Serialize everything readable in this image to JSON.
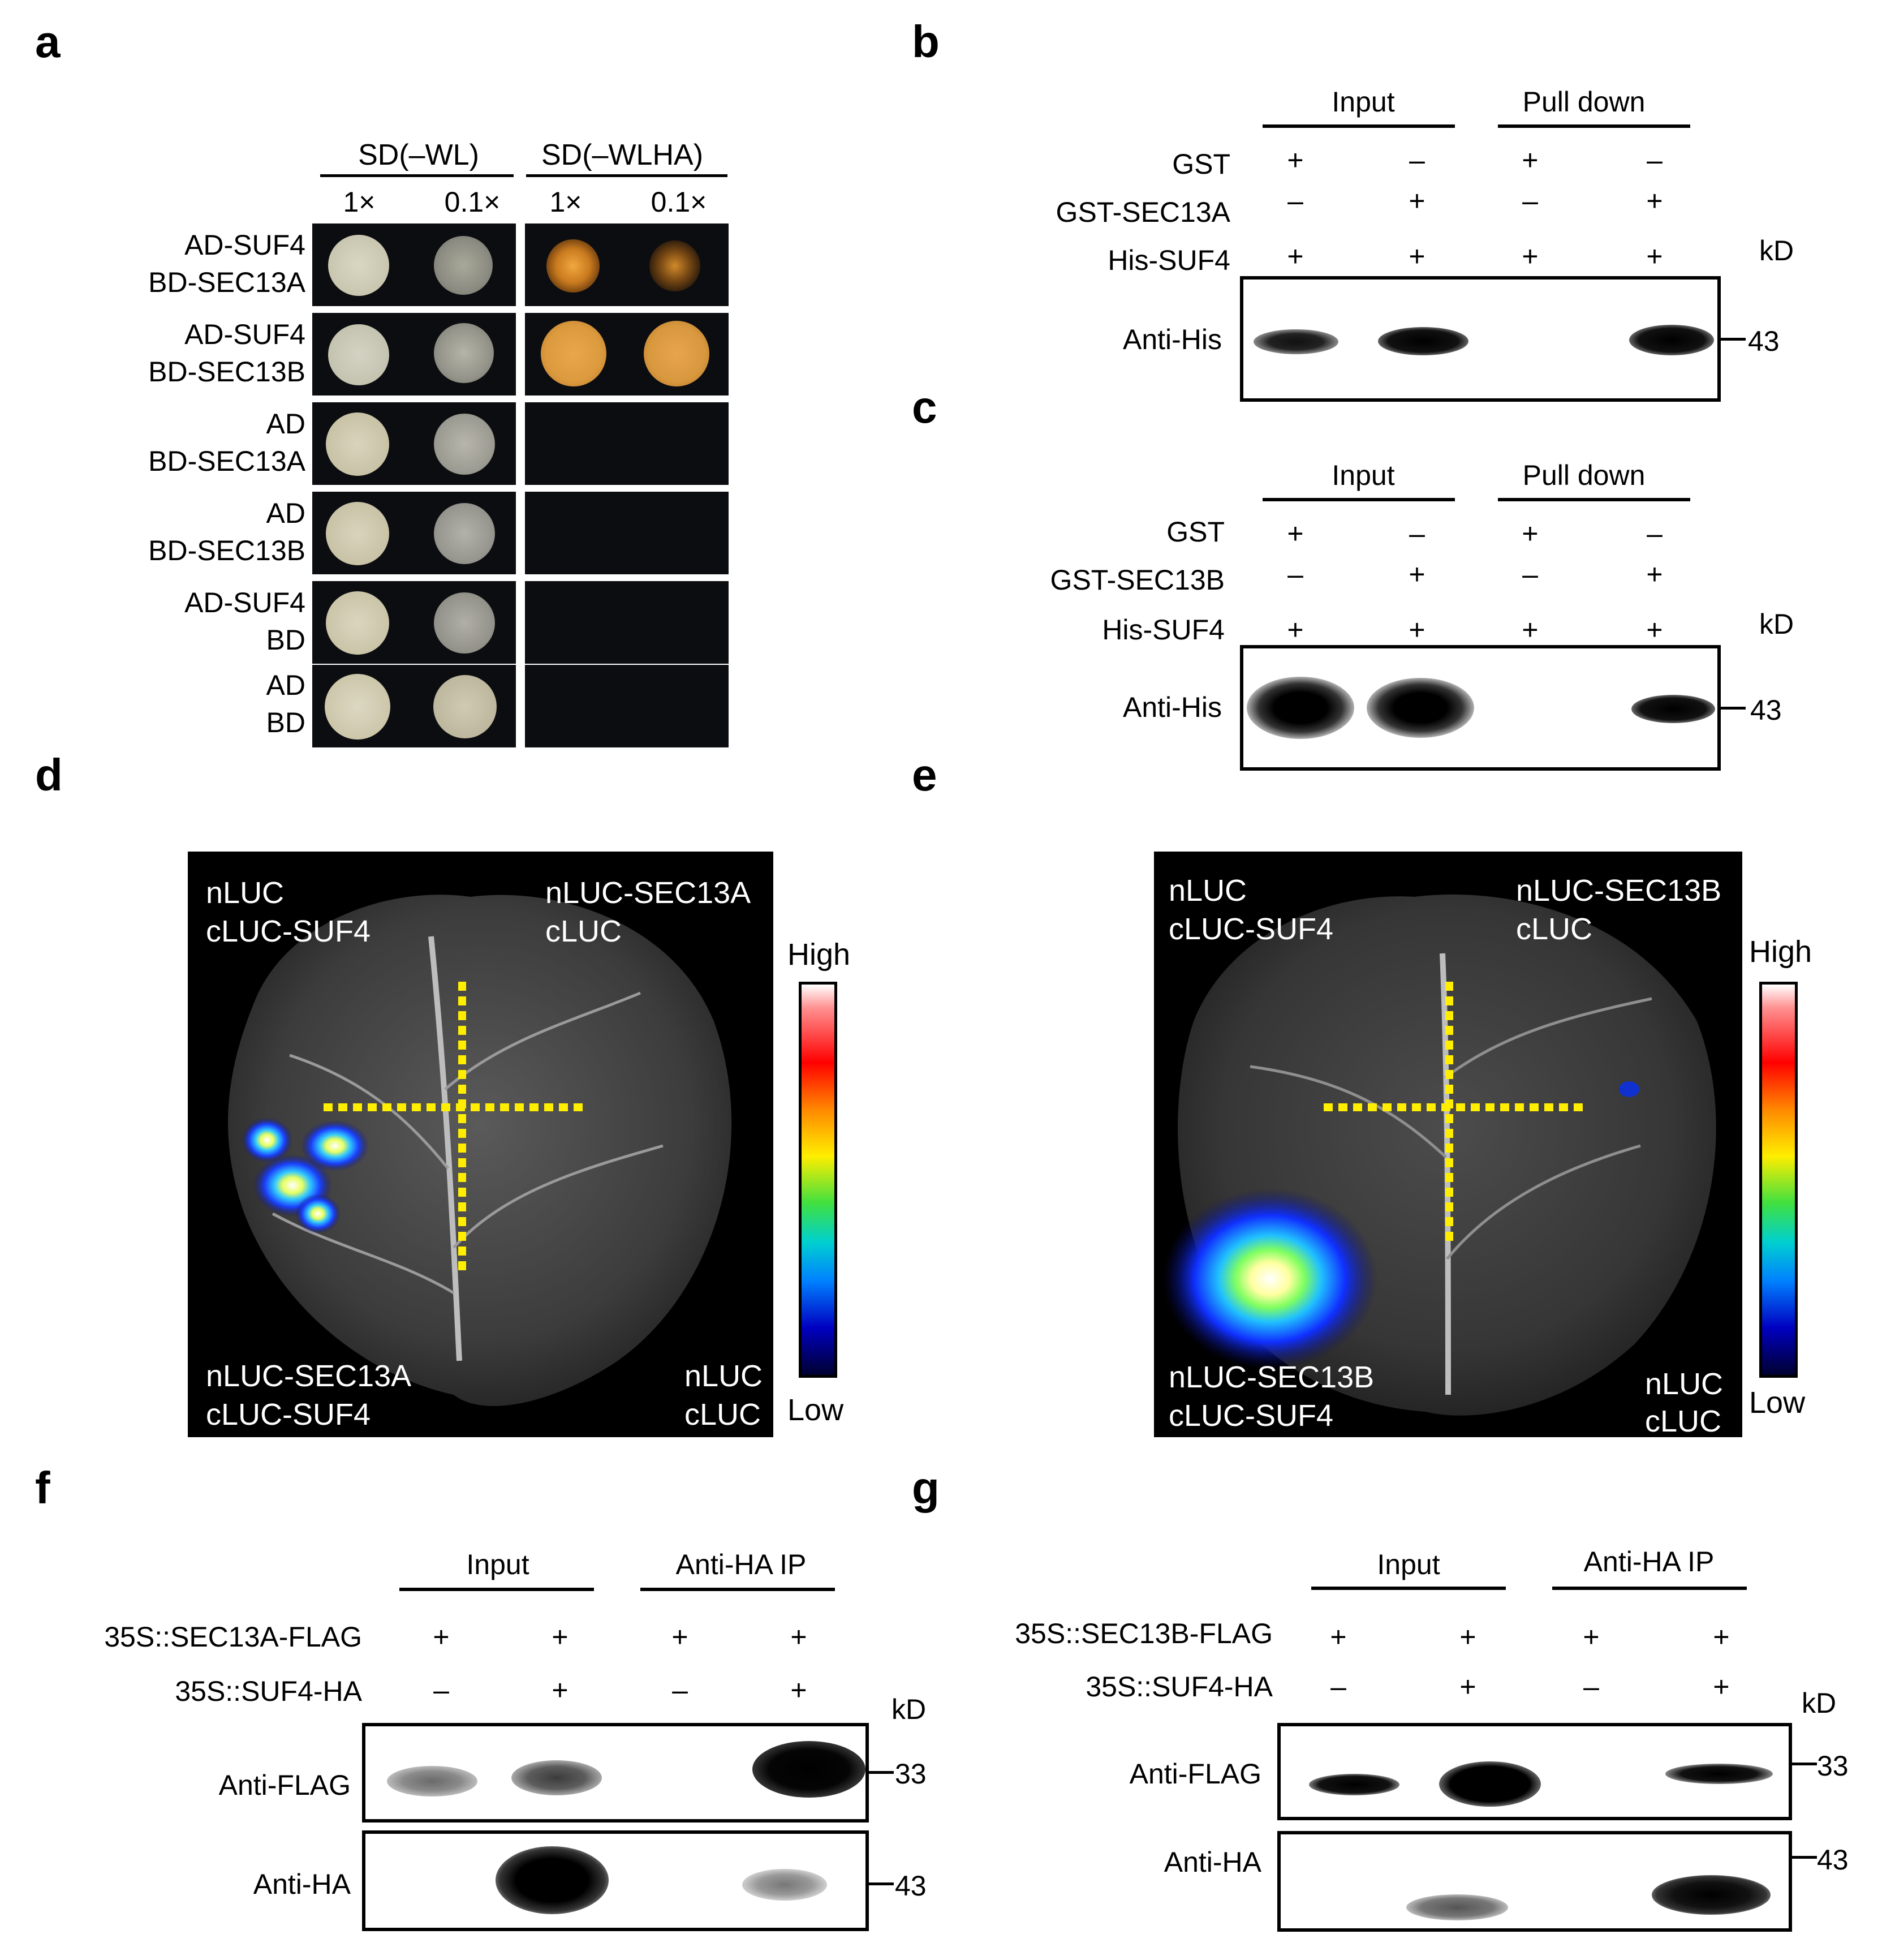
{
  "panel_a": {
    "label": "a",
    "media_headers": [
      "SD(–WL)",
      "SD(–WLHA)"
    ],
    "dilutions": [
      "1×",
      "0.1×",
      "1×",
      "0.1×"
    ],
    "rows": [
      {
        "line1": "AD-SUF4",
        "line2": "BD-SEC13A"
      },
      {
        "line1": "AD-SUF4",
        "line2": "BD-SEC13B"
      },
      {
        "line1": "AD",
        "line2": "BD-SEC13A"
      },
      {
        "line1": "AD",
        "line2": "BD-SEC13B"
      },
      {
        "line1": "AD-SUF4",
        "line2": "BD"
      },
      {
        "line1": "AD",
        "line2": "BD"
      }
    ]
  },
  "panel_b": {
    "label": "b",
    "headers": [
      "Input",
      "Pull down"
    ],
    "row_labels": [
      "GST",
      "GST-SEC13A",
      "His-SUF4"
    ],
    "signs": [
      [
        "+",
        "–",
        "+",
        "–"
      ],
      [
        "–",
        "+",
        "–",
        "+"
      ],
      [
        "+",
        "+",
        "+",
        "+"
      ]
    ],
    "unit": "kD",
    "blot_label": "Anti-His",
    "marker": "43"
  },
  "panel_c": {
    "label": "c",
    "headers": [
      "Input",
      "Pull down"
    ],
    "row_labels": [
      "GST",
      "GST-SEC13B",
      "His-SUF4"
    ],
    "signs": [
      [
        "+",
        "–",
        "+",
        "–"
      ],
      [
        "–",
        "+",
        "–",
        "+"
      ],
      [
        "+",
        "+",
        "+",
        "+"
      ]
    ],
    "unit": "kD",
    "blot_label": "Anti-His",
    "marker": "43"
  },
  "panel_d": {
    "label": "d",
    "corners": {
      "tl": [
        "nLUC",
        "cLUC-SUF4"
      ],
      "tr": [
        "nLUC-SEC13A",
        "cLUC"
      ],
      "bl": [
        "nLUC-SEC13A",
        "cLUC-SUF4"
      ],
      "br": [
        "nLUC",
        "cLUC"
      ]
    },
    "scale_high": "High",
    "scale_low": "Low"
  },
  "panel_e": {
    "label": "e",
    "corners": {
      "tl": [
        "nLUC",
        "cLUC-SUF4"
      ],
      "tr": [
        "nLUC-SEC13B",
        "cLUC"
      ],
      "bl": [
        "nLUC-SEC13B",
        "cLUC-SUF4"
      ],
      "br": [
        "nLUC",
        "cLUC"
      ]
    },
    "scale_high": "High",
    "scale_low": "Low"
  },
  "panel_f": {
    "label": "f",
    "headers": [
      "Input",
      "Anti-HA IP"
    ],
    "row_labels": [
      "35S::SEC13A-FLAG",
      "35S::SUF4-HA"
    ],
    "signs": [
      [
        "+",
        "+",
        "+",
        "+"
      ],
      [
        "–",
        "+",
        "–",
        "+"
      ]
    ],
    "unit": "kD",
    "blots": [
      {
        "label": "Anti-FLAG",
        "marker": "33"
      },
      {
        "label": "Anti-HA",
        "marker": "43"
      }
    ]
  },
  "panel_g": {
    "label": "g",
    "headers": [
      "Input",
      "Anti-HA IP"
    ],
    "row_labels": [
      "35S::SEC13B-FLAG",
      "35S::SUF4-HA"
    ],
    "signs": [
      [
        "+",
        "+",
        "+",
        "+"
      ],
      [
        "–",
        "+",
        "–",
        "+"
      ]
    ],
    "unit": "kD",
    "blots": [
      {
        "label": "Anti-FLAG",
        "marker": "33"
      },
      {
        "label": "Anti-HA",
        "marker": "43"
      }
    ]
  }
}
